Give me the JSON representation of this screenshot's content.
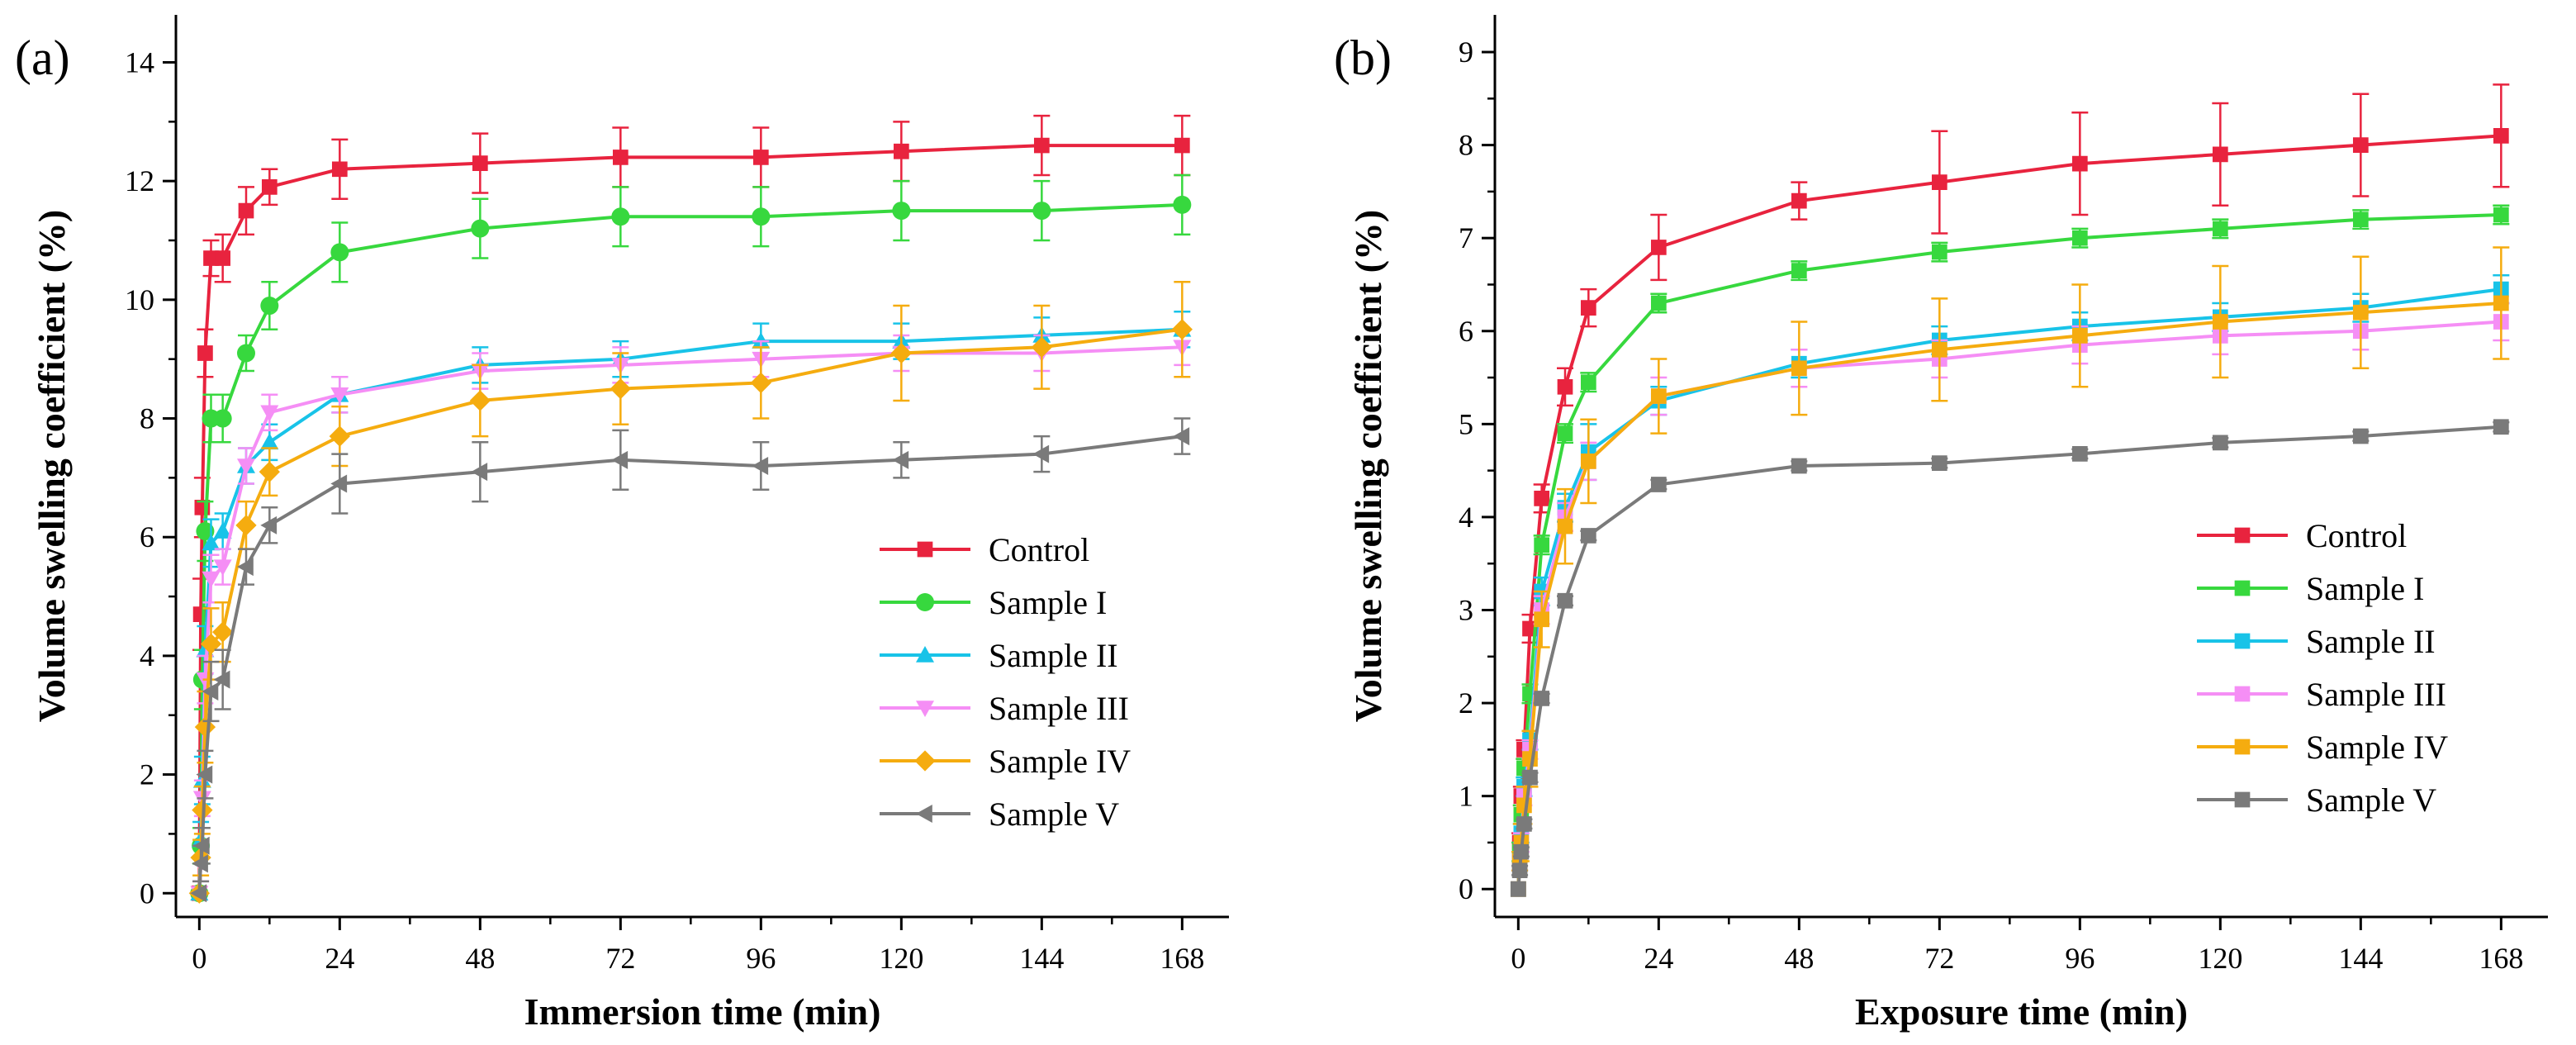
{
  "chart_data": [
    {
      "panel": "(a)",
      "type": "line",
      "xlabel": "Immersion time (min)",
      "ylabel": "Volume swelling coefficient (%)",
      "xlim": [
        -4,
        176
      ],
      "ylim": [
        -0.4,
        14.8
      ],
      "xticks": [
        0,
        24,
        48,
        72,
        96,
        120,
        144,
        168
      ],
      "yticks": [
        0,
        2,
        4,
        6,
        8,
        10,
        12,
        14
      ],
      "x": [
        0,
        0.25,
        0.5,
        1,
        2,
        4,
        8,
        12,
        24,
        48,
        72,
        96,
        120,
        144,
        168
      ],
      "legend_position": "center-right",
      "series": [
        {
          "name": "Control",
          "color": "#e8233e",
          "marker": "square",
          "values": [
            0.0,
            4.7,
            6.5,
            9.1,
            10.7,
            10.7,
            11.5,
            11.9,
            12.2,
            12.3,
            12.4,
            12.4,
            12.5,
            12.6,
            12.6
          ],
          "errors": [
            0.0,
            0.6,
            0.5,
            0.4,
            0.3,
            0.4,
            0.4,
            0.3,
            0.5,
            0.5,
            0.5,
            0.5,
            0.5,
            0.5,
            0.5
          ]
        },
        {
          "name": "Sample I",
          "color": "#37d83e",
          "marker": "circle",
          "values": [
            0.0,
            0.8,
            3.6,
            6.1,
            8.0,
            8.0,
            9.1,
            9.9,
            10.8,
            11.2,
            11.4,
            11.4,
            11.5,
            11.5,
            11.6
          ],
          "errors": [
            0.0,
            0.3,
            0.5,
            0.5,
            0.4,
            0.4,
            0.3,
            0.4,
            0.5,
            0.5,
            0.5,
            0.5,
            0.5,
            0.5,
            0.5
          ]
        },
        {
          "name": "Sample II",
          "color": "#18c3e8",
          "marker": "triangle-up",
          "values": [
            0.0,
            0.9,
            1.9,
            4.1,
            5.9,
            6.1,
            7.2,
            7.6,
            8.4,
            8.9,
            9.0,
            9.3,
            9.3,
            9.4,
            9.5
          ],
          "errors": [
            0.0,
            0.3,
            0.4,
            0.4,
            0.4,
            0.3,
            0.3,
            0.3,
            0.3,
            0.3,
            0.3,
            0.3,
            0.3,
            0.3,
            0.3
          ]
        },
        {
          "name": "Sample III",
          "color": "#f58ef5",
          "marker": "triangle-down",
          "values": [
            0.0,
            0.5,
            1.6,
            3.6,
            5.3,
            5.5,
            7.2,
            8.1,
            8.4,
            8.8,
            8.9,
            9.0,
            9.1,
            9.1,
            9.2
          ],
          "errors": [
            0.0,
            0.3,
            0.3,
            0.4,
            0.4,
            0.3,
            0.3,
            0.3,
            0.3,
            0.3,
            0.3,
            0.3,
            0.3,
            0.3,
            0.3
          ]
        },
        {
          "name": "Sample IV",
          "color": "#f5ac0f",
          "marker": "diamond",
          "values": [
            0.0,
            0.6,
            1.4,
            2.8,
            4.2,
            4.4,
            6.2,
            7.1,
            7.7,
            8.3,
            8.5,
            8.6,
            9.1,
            9.2,
            9.5
          ],
          "errors": [
            0.0,
            0.3,
            0.4,
            0.6,
            0.6,
            0.5,
            0.4,
            0.4,
            0.5,
            0.6,
            0.6,
            0.6,
            0.8,
            0.7,
            0.8
          ]
        },
        {
          "name": "Sample V",
          "color": "#7a7a7a",
          "marker": "triangle-left",
          "values": [
            0.0,
            0.5,
            0.8,
            2.0,
            3.4,
            3.6,
            5.5,
            6.2,
            6.9,
            7.1,
            7.3,
            7.2,
            7.3,
            7.4,
            7.7
          ],
          "errors": [
            0.0,
            0.3,
            0.3,
            0.4,
            0.5,
            0.5,
            0.3,
            0.3,
            0.5,
            0.5,
            0.5,
            0.4,
            0.3,
            0.3,
            0.3
          ]
        }
      ]
    },
    {
      "panel": "(b)",
      "type": "line",
      "xlabel": "Exposure time (min)",
      "ylabel": "Volume swelling coefficient (%)",
      "xlim": [
        -4,
        176
      ],
      "ylim": [
        -0.3,
        9.4
      ],
      "xticks": [
        0,
        24,
        48,
        72,
        96,
        120,
        144,
        168
      ],
      "yticks": [
        0,
        1,
        2,
        3,
        4,
        5,
        6,
        7,
        8,
        9
      ],
      "x": [
        0,
        0.25,
        0.5,
        1,
        2,
        4,
        8,
        12,
        24,
        48,
        72,
        96,
        120,
        144,
        168
      ],
      "legend_position": "center-right",
      "series": [
        {
          "name": "Control",
          "color": "#e8233e",
          "marker": "square",
          "values": [
            0.0,
            0.5,
            1.0,
            1.5,
            2.8,
            4.2,
            5.4,
            6.25,
            6.9,
            7.4,
            7.6,
            7.8,
            7.9,
            8.0,
            8.1
          ],
          "errors": [
            0.0,
            0.1,
            0.1,
            0.1,
            0.15,
            0.15,
            0.2,
            0.2,
            0.35,
            0.2,
            0.55,
            0.55,
            0.55,
            0.55,
            0.55
          ]
        },
        {
          "name": "Sample I",
          "color": "#37d83e",
          "marker": "square",
          "values": [
            0.0,
            0.4,
            0.8,
            1.3,
            2.1,
            3.7,
            4.9,
            5.45,
            6.3,
            6.65,
            6.85,
            7.0,
            7.1,
            7.2,
            7.25
          ],
          "errors": [
            0.0,
            0.1,
            0.1,
            0.1,
            0.1,
            0.1,
            0.1,
            0.1,
            0.1,
            0.1,
            0.1,
            0.1,
            0.1,
            0.1,
            0.1
          ]
        },
        {
          "name": "Sample II",
          "color": "#18c3e8",
          "marker": "square",
          "values": [
            0.0,
            0.3,
            0.6,
            1.1,
            1.6,
            3.2,
            4.1,
            4.7,
            5.25,
            5.65,
            5.9,
            6.05,
            6.15,
            6.25,
            6.45
          ],
          "errors": [
            0.0,
            0.1,
            0.1,
            0.1,
            0.1,
            0.15,
            0.15,
            0.3,
            0.15,
            0.15,
            0.15,
            0.15,
            0.15,
            0.15,
            0.15
          ]
        },
        {
          "name": "Sample III",
          "color": "#f58ef5",
          "marker": "square",
          "values": [
            0.0,
            0.3,
            0.5,
            1.0,
            1.5,
            3.0,
            4.0,
            4.6,
            5.3,
            5.6,
            5.7,
            5.85,
            5.95,
            6.0,
            6.1
          ],
          "errors": [
            0.0,
            0.1,
            0.1,
            0.1,
            0.1,
            0.15,
            0.15,
            0.2,
            0.2,
            0.2,
            0.2,
            0.2,
            0.2,
            0.2,
            0.2
          ]
        },
        {
          "name": "Sample IV",
          "color": "#f5ac0f",
          "marker": "square",
          "values": [
            0.0,
            0.3,
            0.5,
            0.9,
            1.4,
            2.9,
            3.9,
            4.6,
            5.3,
            5.6,
            5.8,
            5.95,
            6.1,
            6.2,
            6.3
          ],
          "errors": [
            0.0,
            0.1,
            0.2,
            0.2,
            0.3,
            0.3,
            0.4,
            0.45,
            0.4,
            0.5,
            0.55,
            0.55,
            0.6,
            0.6,
            0.6
          ]
        },
        {
          "name": "Sample V",
          "color": "#7a7a7a",
          "marker": "square",
          "values": [
            0.0,
            0.2,
            0.4,
            0.7,
            1.2,
            2.05,
            3.1,
            3.8,
            4.35,
            4.55,
            4.58,
            4.68,
            4.8,
            4.87,
            4.97
          ],
          "errors": [
            0.0,
            0.05,
            0.05,
            0.05,
            0.05,
            0.05,
            0.05,
            0.05,
            0.05,
            0.05,
            0.05,
            0.05,
            0.05,
            0.05,
            0.05
          ]
        }
      ]
    }
  ]
}
